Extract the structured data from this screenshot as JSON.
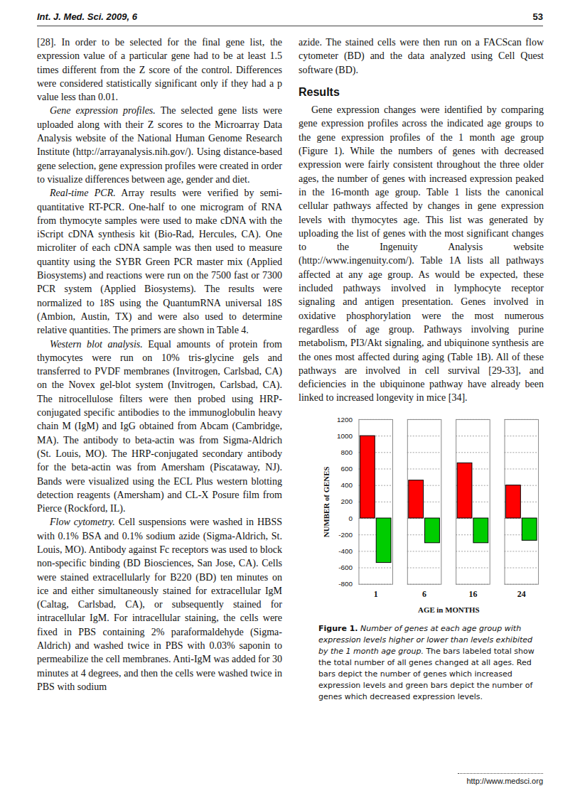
{
  "page": {
    "header": {
      "journal": "Int. J. Med. Sci. 2009, 6",
      "page": "53"
    },
    "left_column": [
      {
        "lead": null,
        "text": "[28]. In order to be selected for the final gene list, the expression value of a particular gene had to be at least 1.5 times different from the Z score of the control. Differences were considered statistically significant only if they had a p value less than 0.01."
      },
      {
        "lead": "Gene expression profiles.",
        "text": "The selected gene lists were uploaded along with their Z scores to the Microarray Data Analysis website of the National Human Genome Research Institute (http://arrayanalysis.nih.gov/). Using distance-based gene selection, gene expression profiles were created in order to visualize differences between age, gender and diet."
      },
      {
        "lead": "Real-time PCR.",
        "text": "Array results were verified by semi-quantitative RT-PCR. One-half to one microgram of RNA from thymocyte samples were used to make cDNA with the iScript cDNA synthesis kit (Bio-Rad, Hercules, CA). One microliter of each cDNA sample was then used to measure quantity using the SYBR Green PCR master mix (Applied Biosystems) and reactions were run on the 7500 fast or 7300 PCR system (Applied Biosystems). The results were normalized to 18S using the QuantumRNA universal 18S (Ambion, Austin, TX) and were also used to determine relative quantities. The primers are shown in Table 4."
      },
      {
        "lead": "Western blot analysis.",
        "text": "Equal amounts of protein from thymocytes were run on 10% tris-glycine gels and transferred to PVDF membranes (Invitrogen, Carlsbad, CA) on the Novex gel-blot system (Invitrogen, Carlsbad, CA). The nitrocellulose filters were then probed using HRP-conjugated specific antibodies to the immunoglobulin heavy chain M (IgM) and IgG obtained from Abcam (Cambridge, MA). The antibody to beta-actin was from Sigma-Aldrich (St. Louis, MO). The HRP-conjugated secondary antibody for the beta-actin was from Amersham (Piscataway, NJ). Bands were visualized using the ECL Plus western blotting detection reagents (Amersham) and CL-X Posure film from Pierce (Rockford, IL)."
      },
      {
        "lead": "Flow cytometry.",
        "text": "Cell suspensions were washed in HBSS with 0.1% BSA and 0.1% sodium azide (Sigma-Aldrich, St. Louis, MO). Antibody against Fc receptors was used to block non-specific binding (BD Biosciences, San Jose, CA). Cells were stained extracellularly for B220 (BD) ten minutes on ice and either simultaneously stained for extracellular IgM (Caltag, Carlsbad, CA), or subsequently stained for intracellular IgM. For intracellular staining, the cells were fixed in PBS containing 2% paraformaldehyde (Sigma-Aldrich) and washed twice in PBS with 0.03% saponin to permeabilize the cell membranes. Anti-IgM was added for 30 minutes at 4 degrees, and then the cells were washed twice in PBS with sodium"
      }
    ],
    "right_column": {
      "continuation": "azide. The stained cells were then run on a FACScan flow cytometer (BD) and the data analyzed using Cell Quest software (BD).",
      "heading": "Results",
      "paragraph": "Gene expression changes were identified by comparing gene expression profiles across the indicated age groups to the gene expression profiles of the 1 month age group (Figure 1). While the numbers of genes with decreased expression were fairly consistent throughout the three older ages, the number of genes with increased expression peaked in the 16-month age group. Table 1 lists the canonical cellular pathways affected by changes in gene expression levels with thymocytes age. This list was generated by uploading the list of genes with the most significant changes to the Ingenuity Analysis website (http://www.ingenuity.com/). Table 1A lists all pathways affected at any age group. As would be expected, these included pathways involved in lymphocyte receptor signaling and antigen presentation. Genes involved in oxidative phosphorylation were the most numerous regardless of age group. Pathways involving purine metabolism, PI3/Akt signaling, and ubiquinone synthesis are the ones most affected during aging (Table 1B). All of these pathways are involved in cell survival [29-33], and deficiencies in the ubiquinone pathway have already been linked to increased longevity in mice [34]."
    },
    "caption": {
      "label": "Figure 1.",
      "italic": "Number of genes at each age group with expression levels higher or lower than levels exhibited by the 1 month age group.",
      "text": "The bars labeled total show the total number of all genes changed at all ages. Red bars depict the number of genes which increased expression levels and green bars depict the number of genes which decreased expression levels."
    },
    "footer": "http://www.medsci.org"
  },
  "chart_data": {
    "type": "bar",
    "x_label": "AGE in MONTHS",
    "y_label": "NUMBER of GENES",
    "categories": [
      "1",
      "6",
      "16",
      "24"
    ],
    "series": [
      {
        "color": "#ff0000",
        "values": [
          1000,
          460,
          670,
          400
        ]
      },
      {
        "color": "#00cc00",
        "values": [
          -540,
          -300,
          -300,
          -270
        ]
      }
    ],
    "ylim": [
      -800,
      1200
    ],
    "yticks": [
      -800,
      -600,
      -400,
      -200,
      0,
      200,
      400,
      600,
      800,
      1000,
      1200
    ],
    "grid": true
  }
}
